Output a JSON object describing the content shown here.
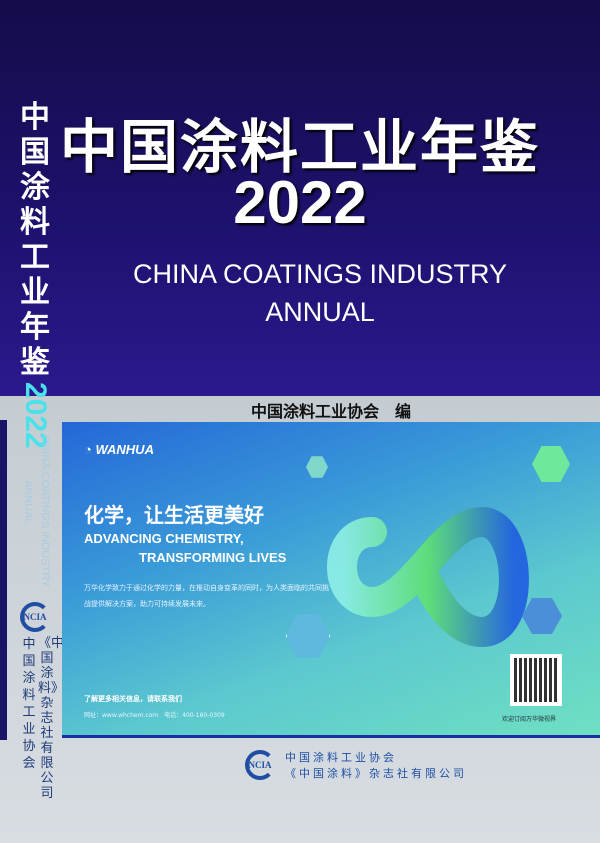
{
  "cover": {
    "title_cn": "中国涂料工业年鉴",
    "year": "2022",
    "title_en_line1": "CHINA COATINGS INDUSTRY",
    "title_en_line2": "ANNUAL",
    "editor": "中国涂料工业协会　编"
  },
  "spine": {
    "title_cn": "中国涂料工业年鉴",
    "year": "2022",
    "title_en_line1": "CHINA COATINGS INDUSTRY",
    "title_en_line2": "ANNUAL",
    "logo": "NCIA",
    "publisher1": "中国涂料工业协会",
    "publisher2": "《中国涂料》杂志社有限公司"
  },
  "ad": {
    "brand": "WANHUA",
    "slogan": "化学，让生活更美好",
    "en_line1": "ADVANCING CHEMISTRY,",
    "en_line2": "TRANSFORMING LIVES",
    "description": "万华化学致力于通过化学的力量，在推动自身变革的同时，为人类面临的共同挑战提供解决方案，助力可持续发展未来。",
    "contact": "了解更多相关信息，请联系我们",
    "website": "网址：www.whchem.com　电话：400-160-0309",
    "qr_caption": "欢迎订阅万华微视界"
  },
  "footer": {
    "logo": "NCIA",
    "publisher1": "中国涂料工业协会",
    "publisher2": "《中国涂料》杂志社有限公司"
  },
  "colors": {
    "cover_top": "#1d1270",
    "spine_year": "#49e2ea",
    "publisher_blue": "#1f4ea3"
  }
}
